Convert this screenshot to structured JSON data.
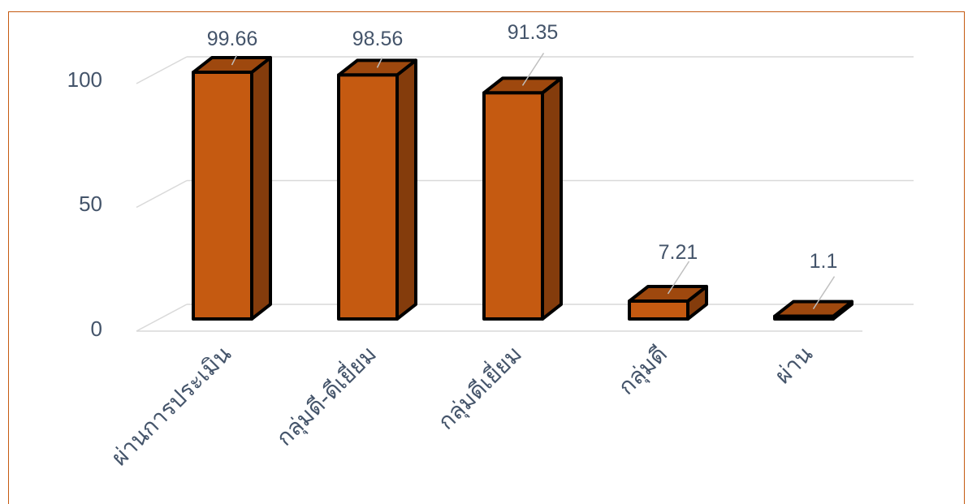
{
  "chart_data": {
    "type": "bar",
    "categories": [
      "ผ่านการประเมิน",
      "กลุ่มดี-ดีเยี่ยม",
      "กลุ่มดีเยี่ยม",
      "กลุ่มดี",
      "ผ่าน"
    ],
    "values": [
      99.66,
      98.56,
      91.35,
      7.21,
      1.1
    ],
    "data_labels": [
      "99.66",
      "98.56",
      "91.35",
      "7.21",
      "1.1"
    ],
    "ylim": [
      0,
      100
    ],
    "yticks": [
      "0",
      "50",
      "100"
    ],
    "title": "",
    "xlabel": "",
    "ylabel": "",
    "grid": true,
    "style": "3d-column",
    "colors": {
      "front": "#c55a11",
      "side": "#843c0c",
      "top": "#9e480e",
      "outline": "#000000",
      "grid": "#d9d9d9",
      "frame": "#c55a11"
    }
  }
}
